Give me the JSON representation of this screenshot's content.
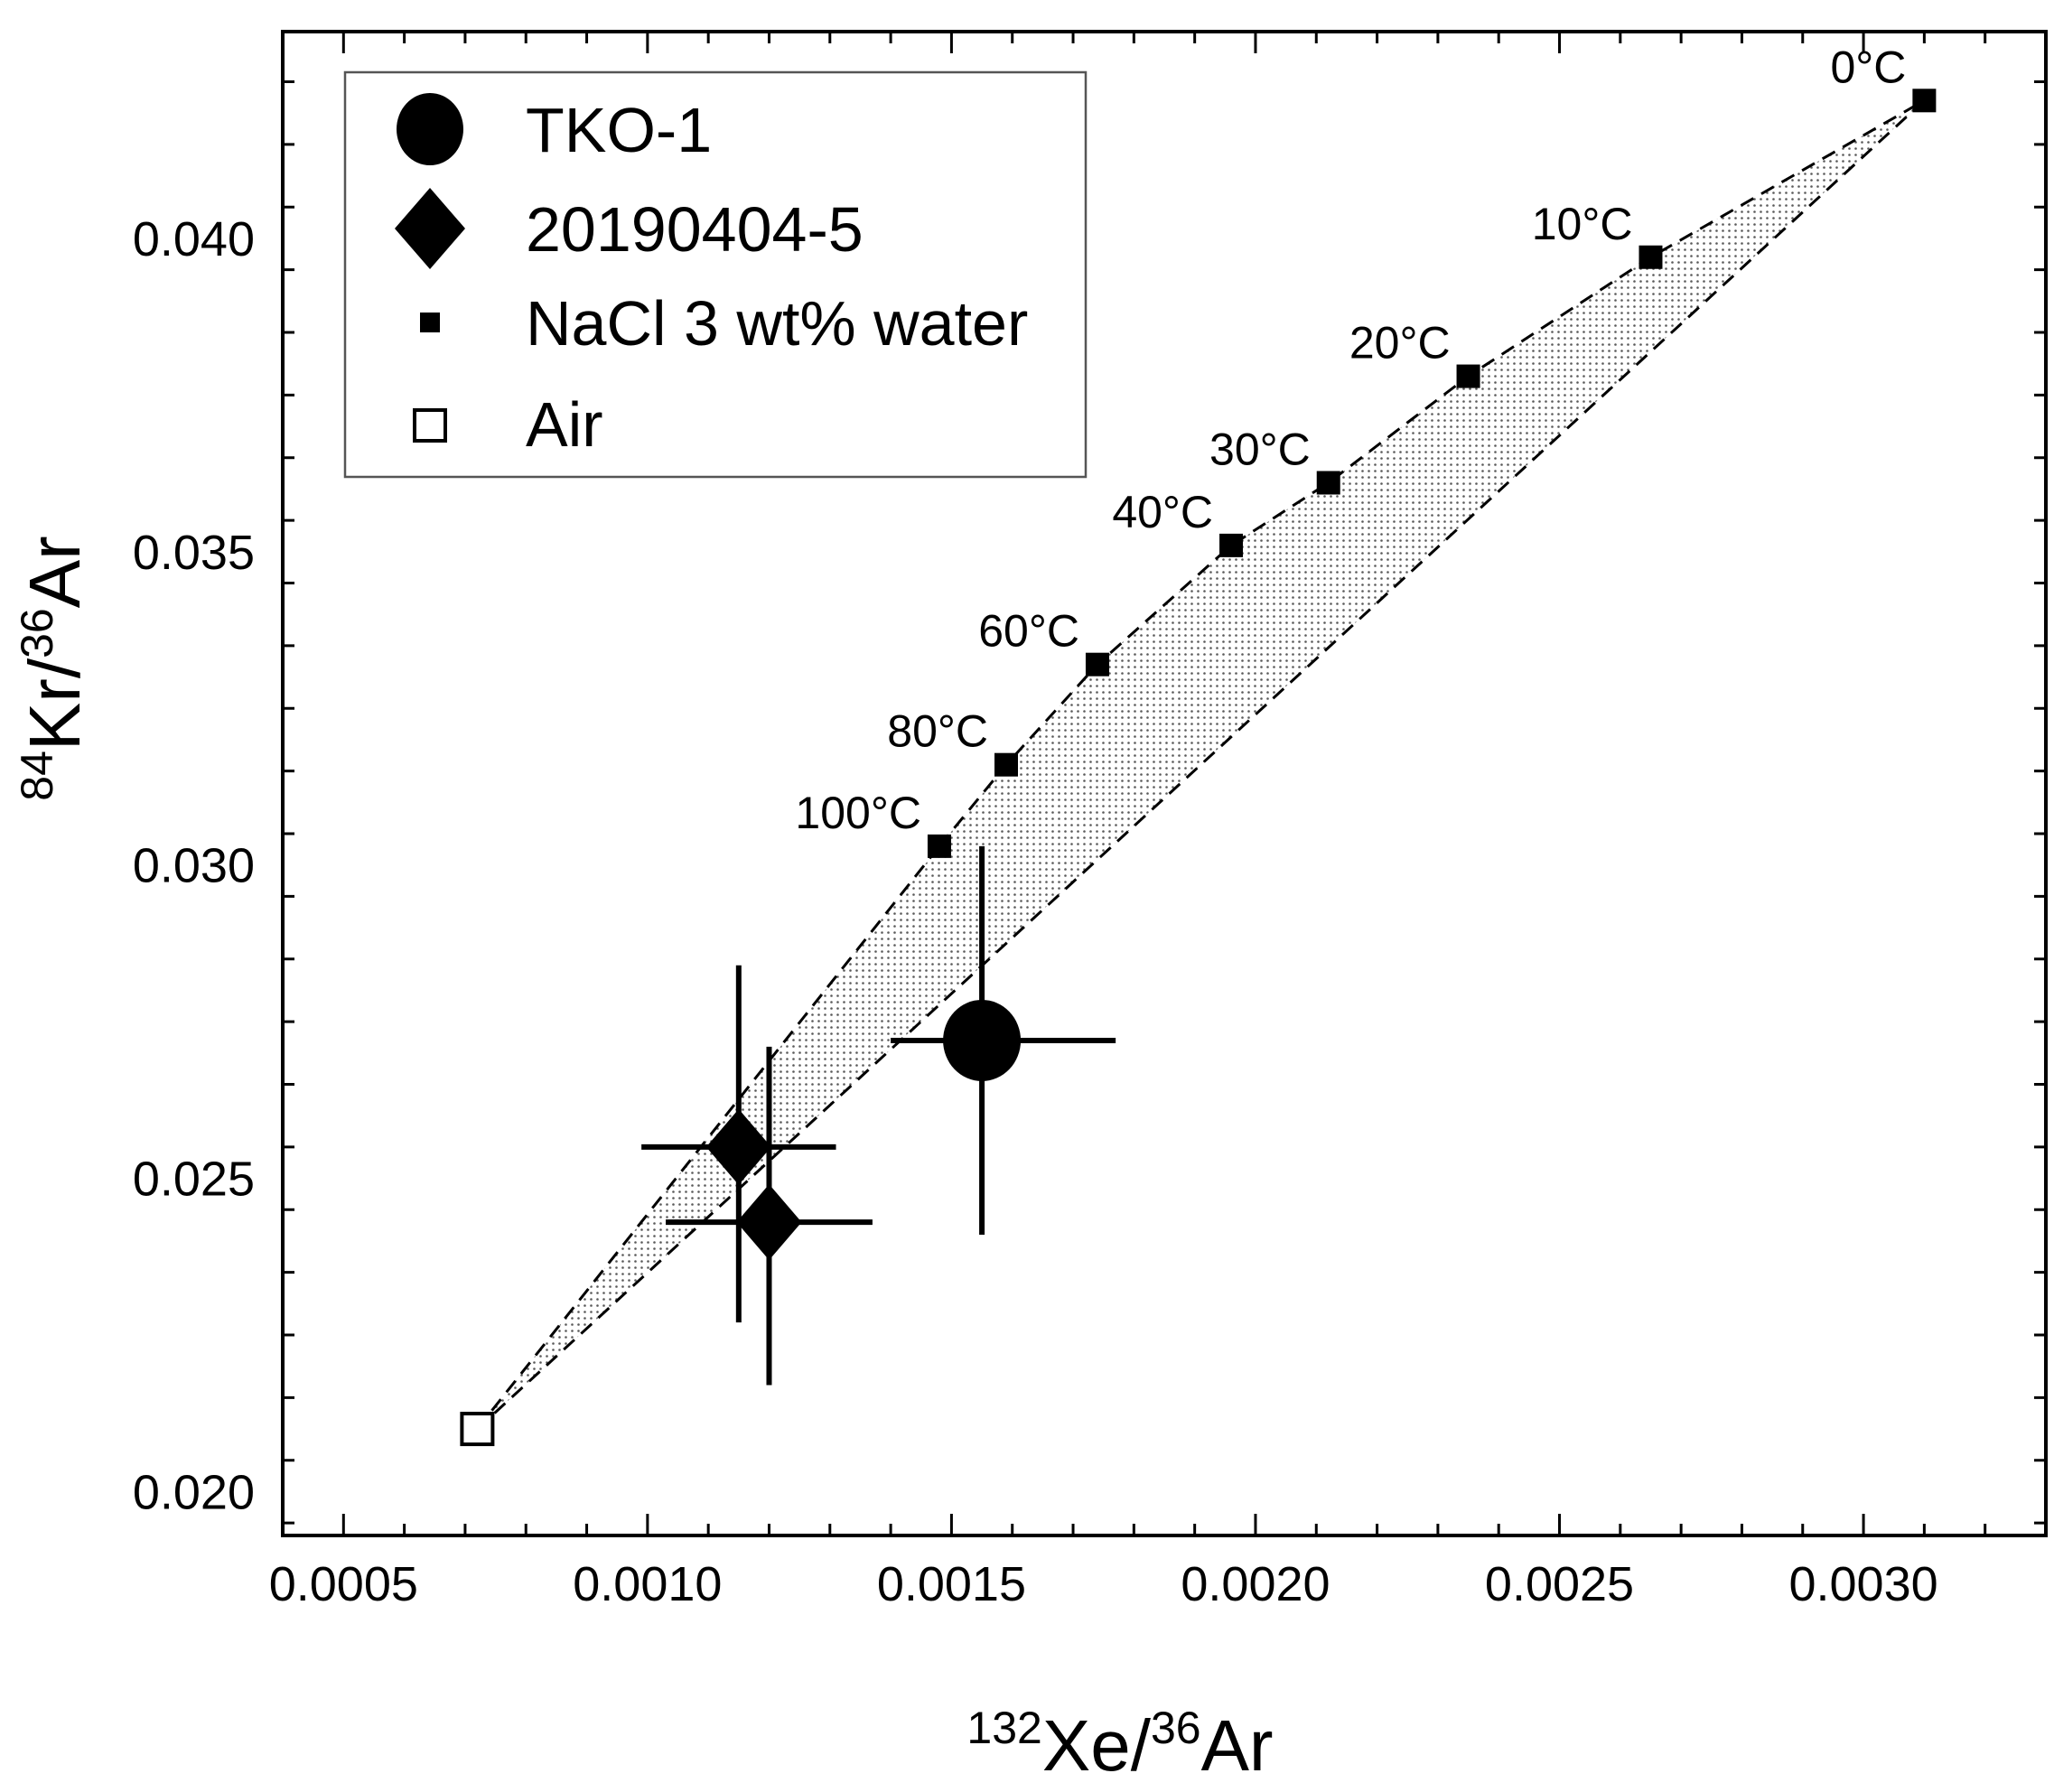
{
  "chart_data": {
    "type": "scatter",
    "xlabel": {
      "sup1": "132",
      "main1": "Xe/",
      "sup2": "36",
      "main2": "Ar"
    },
    "ylabel": {
      "sup1": "84",
      "main1": "Kr/",
      "sup2": "36",
      "main2": "Ar"
    },
    "xlim": [
      0.0004,
      0.0033
    ],
    "ylim": [
      0.0193,
      0.0433
    ],
    "x_ticks": [
      {
        "value": 0.0005,
        "label": "0.0005"
      },
      {
        "value": 0.001,
        "label": "0.0010"
      },
      {
        "value": 0.0015,
        "label": "0.0015"
      },
      {
        "value": 0.002,
        "label": "0.0020"
      },
      {
        "value": 0.0025,
        "label": "0.0025"
      },
      {
        "value": 0.003,
        "label": "0.0030"
      }
    ],
    "y_ticks": [
      {
        "value": 0.02,
        "label": "0.020"
      },
      {
        "value": 0.025,
        "label": "0.025"
      },
      {
        "value": 0.03,
        "label": "0.030"
      },
      {
        "value": 0.035,
        "label": "0.035"
      },
      {
        "value": 0.04,
        "label": "0.040"
      }
    ],
    "legend": [
      {
        "name": "TKO-1",
        "marker": "circle"
      },
      {
        "name": "20190404-5",
        "marker": "diamond"
      },
      {
        "name": "NaCl 3 wt% water",
        "marker": "filled-square"
      },
      {
        "name": "Air",
        "marker": "open-square"
      }
    ],
    "series": [
      {
        "name": "TKO-1",
        "marker": "circle",
        "points": [
          {
            "x": 0.00155,
            "y": 0.0272,
            "x_err": [
              0.0014,
              0.00177
            ],
            "y_err": [
              0.0241,
              0.0303
            ]
          }
        ]
      },
      {
        "name": "20190404-5",
        "marker": "diamond",
        "points": [
          {
            "x": 0.00115,
            "y": 0.0255,
            "x_err": [
              0.00099,
              0.00131
            ],
            "y_err": [
              0.0227,
              0.0284
            ]
          },
          {
            "x": 0.0012,
            "y": 0.0243,
            "x_err": [
              0.00103,
              0.00137
            ],
            "y_err": [
              0.0217,
              0.0271
            ]
          }
        ]
      },
      {
        "name": "NaCl 3 wt% water",
        "marker": "filled-square",
        "points": [
          {
            "x": 0.0031,
            "y": 0.0422,
            "label": "0°C"
          },
          {
            "x": 0.00265,
            "y": 0.0397,
            "label": "10°C"
          },
          {
            "x": 0.00235,
            "y": 0.0378,
            "label": "20°C"
          },
          {
            "x": 0.00212,
            "y": 0.0361,
            "label": "30°C"
          },
          {
            "x": 0.00196,
            "y": 0.0351,
            "label": "40°C"
          },
          {
            "x": 0.00174,
            "y": 0.0332,
            "label": "60°C"
          },
          {
            "x": 0.00159,
            "y": 0.0316,
            "label": "80°C"
          },
          {
            "x": 0.00148,
            "y": 0.0303,
            "label": "100°C"
          }
        ]
      },
      {
        "name": "Air",
        "marker": "open-square",
        "points": [
          {
            "x": 0.00072,
            "y": 0.021
          }
        ]
      }
    ],
    "mixing_lines": [
      {
        "from": [
          0.00072,
          0.021
        ],
        "to": [
          0.00148,
          0.0303
        ],
        "style": "dashed"
      },
      {
        "from": [
          0.00072,
          0.021
        ],
        "to": [
          0.0031,
          0.0422
        ],
        "style": "dashed"
      }
    ]
  }
}
